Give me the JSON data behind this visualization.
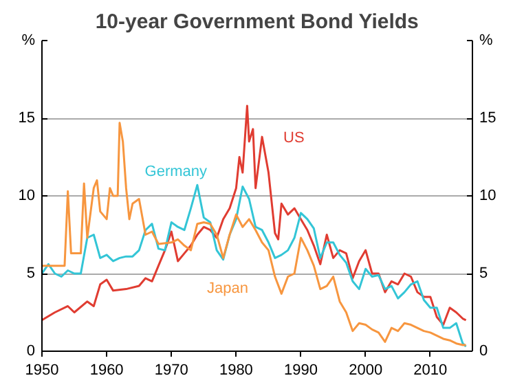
{
  "chart_data": {
    "type": "line",
    "title": "10-year Government Bond Yields",
    "xlim": [
      1950,
      2016.5
    ],
    "xticks": [
      1950,
      1960,
      1970,
      1980,
      1990,
      2000,
      2010
    ],
    "ylim": [
      0,
      20
    ],
    "yticks": [
      0,
      5,
      10,
      15,
      {
        "value": 20,
        "label": "%"
      }
    ],
    "y2lim": [
      0,
      20
    ],
    "y2ticks": [
      0,
      5,
      10,
      15,
      {
        "value": 20,
        "label": "%"
      }
    ],
    "grid": "y",
    "line_style": "solid",
    "marker": "none",
    "series": [
      {
        "name": "US",
        "color": "#e03c31",
        "x": [
          1950,
          1952,
          1954,
          1955,
          1957,
          1958,
          1959,
          1960,
          1961,
          1963,
          1965,
          1966,
          1967,
          1968,
          1969,
          1970,
          1971,
          1972,
          1973,
          1974,
          1975,
          1976,
          1977,
          1978,
          1979,
          1980,
          1980.5,
          1981,
          1981.7,
          1982,
          1982.6,
          1983,
          1984,
          1985,
          1986,
          1986.5,
          1987,
          1988,
          1989,
          1990,
          1991,
          1992,
          1993,
          1994,
          1995,
          1996,
          1997,
          1998,
          1999,
          2000,
          2001,
          2002,
          2003,
          2004,
          2005,
          2006,
          2007,
          2008,
          2009,
          2010,
          2011,
          2012,
          2013,
          2014,
          2015,
          2015.5
        ],
        "values": [
          2.0,
          2.5,
          2.9,
          2.5,
          3.2,
          2.9,
          4.3,
          4.6,
          3.9,
          4.0,
          4.2,
          4.7,
          4.5,
          5.5,
          6.5,
          7.7,
          5.8,
          6.3,
          6.8,
          7.5,
          8.0,
          7.8,
          7.3,
          8.5,
          9.2,
          10.5,
          12.5,
          11.5,
          15.8,
          13.5,
          14.3,
          10.5,
          13.8,
          11.5,
          7.6,
          7.2,
          9.5,
          8.8,
          9.2,
          8.5,
          7.8,
          6.8,
          5.6,
          7.5,
          6.0,
          6.5,
          6.3,
          4.7,
          5.8,
          6.5,
          5.0,
          5.0,
          3.8,
          4.5,
          4.3,
          5.0,
          4.8,
          3.8,
          3.5,
          3.5,
          2.2,
          1.7,
          2.8,
          2.5,
          2.1,
          2.0
        ]
      },
      {
        "name": "Germany",
        "color": "#33c5d6",
        "x": [
          1950,
          1951,
          1952,
          1953,
          1954,
          1955,
          1956,
          1957,
          1958,
          1959,
          1960,
          1961,
          1962,
          1963,
          1964,
          1965,
          1966,
          1967,
          1968,
          1969,
          1970,
          1971,
          1972,
          1973,
          1974,
          1975,
          1976,
          1977,
          1978,
          1979,
          1980,
          1981,
          1982,
          1983,
          1984,
          1985,
          1986,
          1987,
          1988,
          1989,
          1990,
          1991,
          1992,
          1993,
          1994,
          1995,
          1996,
          1997,
          1998,
          1999,
          2000,
          2001,
          2002,
          2003,
          2004,
          2005,
          2006,
          2007,
          2008,
          2009,
          2010,
          2011,
          2012,
          2013,
          2014,
          2015,
          2015.5
        ],
        "values": [
          5.0,
          5.6,
          5.0,
          4.8,
          5.2,
          5.0,
          5.0,
          7.3,
          7.5,
          6.0,
          6.2,
          5.8,
          6.0,
          6.1,
          6.1,
          6.5,
          7.8,
          8.2,
          6.6,
          6.5,
          8.3,
          8.0,
          7.8,
          9.2,
          10.7,
          8.6,
          8.3,
          6.5,
          5.9,
          7.5,
          8.5,
          10.6,
          9.8,
          8.0,
          7.8,
          7.0,
          6.0,
          6.2,
          6.5,
          7.3,
          8.9,
          8.5,
          7.9,
          6.0,
          7.0,
          7.0,
          6.2,
          5.7,
          4.5,
          4.0,
          5.3,
          4.8,
          4.9,
          4.0,
          4.2,
          3.4,
          3.8,
          4.3,
          4.5,
          3.3,
          2.8,
          2.8,
          1.5,
          1.5,
          1.8,
          0.5,
          0.3
        ]
      },
      {
        "name": "Japan",
        "color": "#f7963f",
        "x": [
          1950,
          1953.5,
          1954,
          1954.5,
          1956,
          1956.5,
          1957,
          1958,
          1958.5,
          1959,
          1960,
          1960.5,
          1961,
          1961.7,
          1962,
          1962.5,
          1963,
          1963.5,
          1964,
          1965,
          1966,
          1967,
          1968,
          1970,
          1971,
          1972,
          1973,
          1974,
          1975,
          1976,
          1977,
          1978,
          1979,
          1980,
          1981,
          1982,
          1983,
          1984,
          1985,
          1986,
          1987,
          1988,
          1989,
          1990,
          1991,
          1992,
          1993,
          1994,
          1995,
          1996,
          1997,
          1998,
          1999,
          2000,
          2001,
          2002,
          2003,
          2004,
          2005,
          2006,
          2007,
          2008,
          2009,
          2010,
          2011,
          2012,
          2013,
          2014,
          2015,
          2015.5
        ],
        "values": [
          5.5,
          5.5,
          10.3,
          6.3,
          6.3,
          10.8,
          7.3,
          10.5,
          11.0,
          9.0,
          8.5,
          10.5,
          10.0,
          10.0,
          14.7,
          13.5,
          10.5,
          8.5,
          9.5,
          9.8,
          7.5,
          7.7,
          6.9,
          7.0,
          7.2,
          6.8,
          6.5,
          8.2,
          8.3,
          8.2,
          7.5,
          6.0,
          7.5,
          8.8,
          8.0,
          8.5,
          7.8,
          7.0,
          6.5,
          4.8,
          3.7,
          4.8,
          5.0,
          7.3,
          6.5,
          5.5,
          4.0,
          4.2,
          4.8,
          3.2,
          2.5,
          1.3,
          1.8,
          1.7,
          1.4,
          1.2,
          0.6,
          1.5,
          1.3,
          1.8,
          1.7,
          1.5,
          1.3,
          1.2,
          1.0,
          0.8,
          0.7,
          0.5,
          0.4,
          0.4
        ]
      }
    ]
  }
}
